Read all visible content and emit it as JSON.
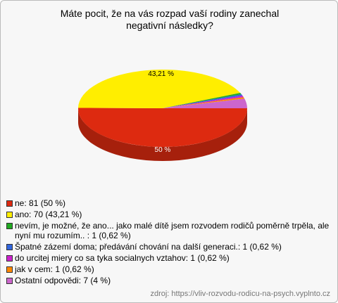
{
  "chart_data": {
    "type": "pie3d",
    "title": "Máte pocit, že na vás rozpad vaší rodiny zanechal negativní následky?",
    "legend": [
      "ne: 81 (50 %)",
      "ano: 70 (43,21 %)",
      "nevím, je možné, že ano... jako malé dítě jsem rozvodem rodičů poměrně trpěla, ale nyní mu rozumím.. : 1 (0,62 %)",
      "Špatné zázemí doma; předávání chování na další generaci.: 1 (0,62 %)",
      "do urcitej miery co sa tyka socialnych vztahov: 1 (0,62 %)",
      "jak v cem: 1 (0,62 %)",
      "Ostatní odpovědi: 7 (4 %)"
    ],
    "values": [
      50,
      43.21,
      0.62,
      0.62,
      0.62,
      0.62,
      4
    ],
    "value_labels": [
      "50 %",
      "43,21 %",
      null,
      null,
      null,
      null,
      null
    ],
    "colors": [
      "#dd2a10",
      "#ffee00",
      "#22aa22",
      "#3366dd",
      "#cc22cc",
      "#ff8800",
      "#cc66cc"
    ],
    "source": "zdroj: https://vliv-rozvodu-rodicu-na-psych.vyplnto.cz"
  }
}
